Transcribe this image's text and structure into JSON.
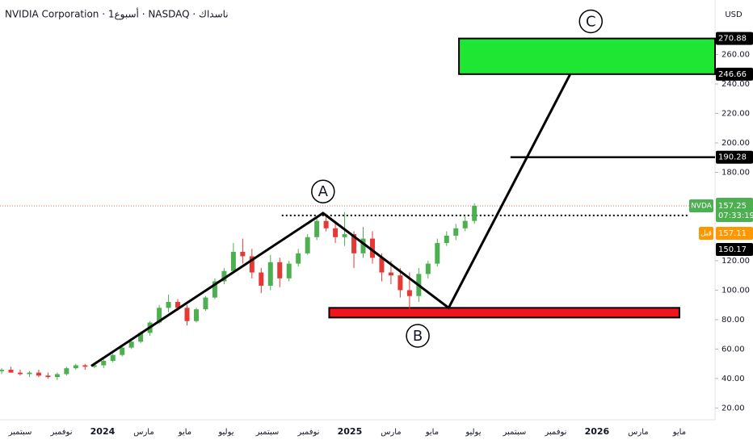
{
  "chart_data": {
    "type": "candlestick",
    "title": "NVIDIA Corporation · 1أسبوع · NASDAQ · ناسداك",
    "currency": "USD",
    "grid": false,
    "up_color": "#4caf50",
    "down_color": "#e53935",
    "xlim": [
      -0.98,
      33.73
    ],
    "ylim": [
      12,
      297
    ],
    "xticks": [
      {
        "value": 0,
        "label": "سبتمبر"
      },
      {
        "value": 2,
        "label": "نوفمبر"
      },
      {
        "value": 4,
        "label": "2024"
      },
      {
        "value": 6,
        "label": "مارس"
      },
      {
        "value": 8,
        "label": "مايو"
      },
      {
        "value": 10,
        "label": "يوليو"
      },
      {
        "value": 12,
        "label": "سبتمبر"
      },
      {
        "value": 14,
        "label": "نوفمبر"
      },
      {
        "value": 16,
        "label": "2025"
      },
      {
        "value": 18,
        "label": "مارس"
      },
      {
        "value": 20,
        "label": "مايو"
      },
      {
        "value": 22,
        "label": "يوليو"
      },
      {
        "value": 24,
        "label": "سبتمبر"
      },
      {
        "value": 26,
        "label": "نوفمبر"
      },
      {
        "value": 28,
        "label": "2026"
      },
      {
        "value": 30,
        "label": "مارس"
      },
      {
        "value": 32,
        "label": "مايو"
      }
    ],
    "yticks": [
      {
        "value": 20,
        "label": "20.00"
      },
      {
        "value": 40,
        "label": "40.00"
      },
      {
        "value": 60,
        "label": "60.00"
      },
      {
        "value": 80,
        "label": "80.00"
      },
      {
        "value": 100,
        "label": "100.00"
      },
      {
        "value": 120,
        "label": "120.00"
      },
      {
        "value": 180,
        "label": "180.00"
      },
      {
        "value": 200,
        "label": "200.00"
      },
      {
        "value": 220,
        "label": "220.00"
      },
      {
        "value": 240,
        "label": "240.00"
      },
      {
        "value": 260,
        "label": "260.00"
      }
    ],
    "x": [
      -0.9,
      -0.45,
      0.0,
      0.45,
      0.9,
      1.35,
      1.8,
      2.25,
      2.7,
      3.15,
      3.6,
      4.05,
      4.5,
      4.95,
      5.4,
      5.85,
      6.3,
      6.75,
      7.2,
      7.65,
      8.1,
      8.55,
      9.0,
      9.45,
      9.9,
      10.35,
      10.8,
      11.25,
      11.7,
      12.15,
      12.6,
      13.05,
      13.5,
      13.95,
      14.4,
      14.85,
      15.3,
      15.75,
      16.2,
      16.65,
      17.1,
      17.55,
      18.0,
      18.45,
      18.9,
      19.35,
      19.8,
      20.25,
      20.7,
      21.15,
      21.6,
      22.05
    ],
    "open": [
      45,
      46,
      44,
      43,
      44,
      42,
      41,
      43,
      47,
      49,
      48,
      49,
      52,
      56,
      61,
      65,
      71,
      78,
      88,
      92,
      88,
      79,
      87,
      95,
      106,
      113,
      126,
      123,
      112,
      103,
      119,
      108,
      118,
      125,
      136,
      147,
      142,
      136,
      138,
      125,
      135,
      122,
      112,
      110,
      100,
      96,
      111,
      118,
      132,
      137,
      142,
      147
    ],
    "high": [
      47,
      48,
      46,
      45,
      46,
      44,
      44,
      48,
      50,
      50,
      50,
      53,
      57,
      62,
      66,
      72,
      79,
      90,
      97,
      94,
      90,
      88,
      96,
      108,
      115,
      132,
      135,
      128,
      115,
      124,
      122,
      120,
      128,
      138,
      150,
      152,
      147,
      153,
      140,
      143,
      140,
      125,
      120,
      115,
      112,
      115,
      120,
      135,
      140,
      145,
      150,
      159
    ],
    "low": [
      43,
      44,
      42,
      41,
      41,
      40,
      39,
      42,
      46,
      46,
      47,
      47,
      51,
      55,
      60,
      64,
      69,
      77,
      85,
      86,
      76,
      78,
      86,
      94,
      104,
      112,
      118,
      108,
      98,
      100,
      102,
      106,
      116,
      124,
      134,
      140,
      132,
      130,
      115,
      122,
      118,
      106,
      104,
      95,
      87,
      92,
      108,
      116,
      130,
      134,
      140,
      145
    ],
    "close": [
      46,
      44,
      43,
      44,
      42,
      41,
      43,
      47,
      49,
      48,
      49,
      52,
      56,
      61,
      65,
      71,
      78,
      88,
      92,
      88,
      79,
      87,
      95,
      106,
      113,
      126,
      123,
      112,
      103,
      119,
      108,
      118,
      125,
      136,
      147,
      142,
      136,
      138,
      125,
      135,
      122,
      112,
      110,
      100,
      96,
      111,
      118,
      132,
      137,
      142,
      147,
      157.25
    ],
    "last_price": {
      "name": "NVDA",
      "value": 157.25,
      "countdown": "07:33:19"
    },
    "premarket": {
      "name": "قبل",
      "value": 157.11
    },
    "level_label": 150.17,
    "drawings": {
      "zigzag": {
        "x": [
          3.45,
          14.7,
          20.8,
          26.7
        ],
        "y": [
          48.5,
          152.3,
          88.0,
          246.66
        ]
      },
      "dotted_level": {
        "x": [
          12.7,
          32.4
        ],
        "y": 150.7
      },
      "support_zone": {
        "x": [
          15.0,
          32.0
        ],
        "y": [
          81.4,
          88.0
        ]
      },
      "target_zone": {
        "x": [
          21.3,
          33.73
        ],
        "y": [
          246.66,
          270.88
        ]
      },
      "target_line": {
        "x": [
          23.8,
          33.73
        ],
        "y": 190.28
      },
      "points": [
        {
          "label": "A",
          "x": 14.7,
          "y": 167
        },
        {
          "label": "B",
          "x": 19.3,
          "y": 69
        },
        {
          "label": "C",
          "x": 27.7,
          "y": 282.5
        }
      ]
    }
  }
}
